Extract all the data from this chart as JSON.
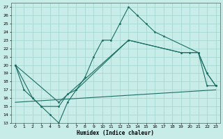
{
  "xlabel": "Humidex (Indice chaleur)",
  "xlim": [
    -0.5,
    23.5
  ],
  "ylim": [
    13,
    27.5
  ],
  "yticks": [
    13,
    14,
    15,
    16,
    17,
    18,
    19,
    20,
    21,
    22,
    23,
    24,
    25,
    26,
    27
  ],
  "xticks": [
    0,
    1,
    2,
    3,
    4,
    5,
    6,
    7,
    8,
    9,
    10,
    11,
    12,
    13,
    14,
    15,
    16,
    17,
    18,
    19,
    20,
    21,
    22,
    23
  ],
  "bg_color": "#c8ece8",
  "grid_color": "#a0d4ce",
  "line_color": "#1a6e64",
  "line1_x": [
    0,
    1,
    2,
    3,
    4,
    5,
    6,
    7,
    8,
    9,
    10,
    11,
    12,
    13,
    14,
    15,
    16,
    17,
    21,
    22,
    23
  ],
  "line1_y": [
    20,
    17,
    16,
    15,
    14,
    13,
    15.5,
    17,
    18.5,
    21,
    23,
    23,
    25,
    27,
    26,
    25,
    24,
    23.5,
    21.5,
    19,
    17.5
  ],
  "line2_x": [
    0,
    2,
    3,
    5,
    6,
    7,
    13,
    19,
    20,
    21,
    22,
    23
  ],
  "line2_y": [
    20,
    16,
    15,
    15,
    16.5,
    17,
    23,
    21.5,
    21.5,
    21.5,
    19,
    17.5
  ],
  "line3_x": [
    0,
    5,
    13,
    19,
    21,
    22,
    23
  ],
  "line3_y": [
    20,
    15.5,
    23,
    21.5,
    21.5,
    17.5,
    17.5
  ],
  "line4_x": [
    0,
    23
  ],
  "line4_y": [
    15.5,
    17.0
  ]
}
